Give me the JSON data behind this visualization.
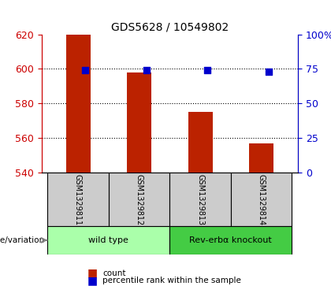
{
  "title": "GDS5628 / 10549802",
  "samples": [
    "GSM1329811",
    "GSM1329812",
    "GSM1329813",
    "GSM1329814"
  ],
  "counts": [
    620,
    598,
    575,
    557
  ],
  "percentile_ranks": [
    74,
    74,
    74,
    73
  ],
  "ylim_left": [
    540,
    620
  ],
  "ylim_right": [
    0,
    100
  ],
  "yticks_left": [
    540,
    560,
    580,
    600,
    620
  ],
  "yticks_right": [
    0,
    25,
    50,
    75,
    100
  ],
  "yticklabels_right": [
    "0",
    "25",
    "50",
    "75",
    "100%"
  ],
  "bar_color": "#bb2200",
  "dot_color": "#0000cc",
  "bar_width": 0.4,
  "groups": [
    {
      "label": "wild type",
      "samples": [
        0,
        1
      ],
      "color": "#aaffaa"
    },
    {
      "label": "Rev-erbα knockout",
      "samples": [
        2,
        3
      ],
      "color": "#44cc44"
    }
  ],
  "genotype_label": "genotype/variation",
  "legend_count_label": "count",
  "legend_pct_label": "percentile rank within the sample",
  "grid_color": "black",
  "grid_linestyle": "dotted",
  "x_positions": [
    0,
    1,
    2,
    3
  ],
  "bar_bottom": 540,
  "dot_size": 40,
  "background_color": "#ffffff",
  "plot_bg_color": "#ffffff",
  "sample_area_color": "#cccccc",
  "sample_area_color2": "#dddddd"
}
